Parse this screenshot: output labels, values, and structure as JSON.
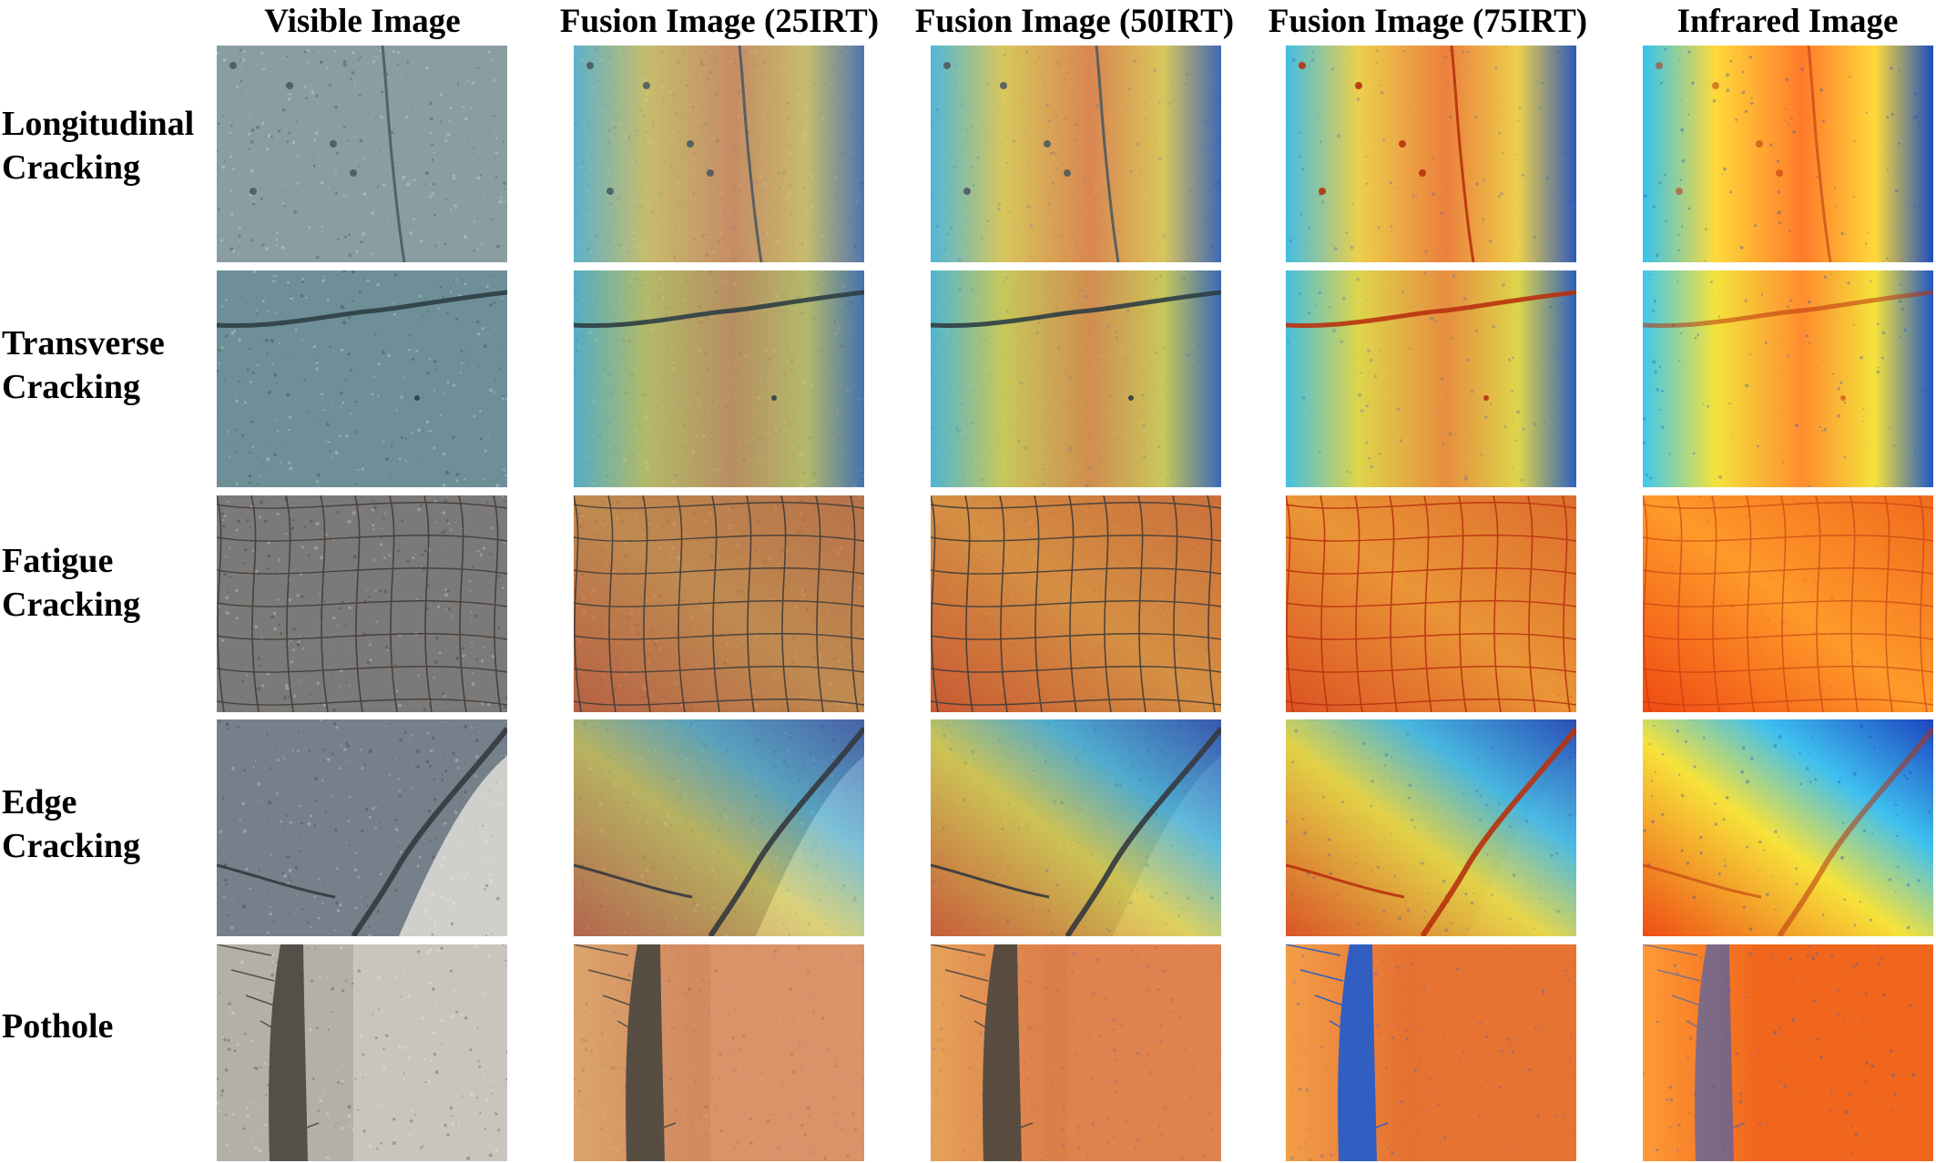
{
  "columns": [
    {
      "label": "Visible Image",
      "mode": "visible"
    },
    {
      "label": "Fusion Image (25IRT)",
      "mode": "fuse25"
    },
    {
      "label": "Fusion Image (50IRT)",
      "mode": "fuse50"
    },
    {
      "label": "Fusion Image (75IRT)",
      "mode": "fuse75"
    },
    {
      "label": "Infrared Image",
      "mode": "infrared"
    }
  ],
  "rows": [
    {
      "lines": [
        "Longitudinal",
        "Cracking"
      ],
      "defect": "longitudinal",
      "visible_colors": {
        "base": "#8a9ea2",
        "dark": "#4e5b60"
      },
      "thermal_colors": {
        "warm": "#ff7a2a",
        "mid": "#ffd93a",
        "cool": "#33c3f0",
        "cold": "#1c4dbf"
      }
    },
    {
      "lines": [
        "Transverse",
        "Cracking"
      ],
      "defect": "transverse",
      "visible_colors": {
        "base": "#6e8f98",
        "dark": "#2e3e44"
      },
      "thermal_colors": {
        "warm": "#ff8d2e",
        "mid": "#f4e23c",
        "cool": "#3fc8ee",
        "cold": "#2057c6"
      }
    },
    {
      "lines": [
        "Fatigue",
        "Cracking"
      ],
      "defect": "fatigue",
      "visible_colors": {
        "base": "#7c7a78",
        "dark": "#403c3a"
      },
      "thermal_colors": {
        "warm": "#ee4a12",
        "mid": "#ff9a2a",
        "cool": "#ffd24a",
        "cold": "#f06a1e"
      }
    },
    {
      "lines": [
        "Edge",
        "Cracking"
      ],
      "defect": "edge",
      "visible_colors": {
        "base": "#75808a",
        "dark": "#35393e"
      },
      "thermal_colors": {
        "warm": "#ee4c14",
        "mid": "#f7e23a",
        "cool": "#3ec0f0",
        "cold": "#1c45c0"
      }
    },
    {
      "lines": [
        "Pothole"
      ],
      "defect": "pothole",
      "visible_colors": {
        "base": "#b4b0a6",
        "dark": "#4a4640"
      },
      "thermal_colors": {
        "warm": "#f0661c",
        "mid": "#ff9a36",
        "cool": "#3aa6ea",
        "cold": "#1d5bd0"
      }
    }
  ]
}
